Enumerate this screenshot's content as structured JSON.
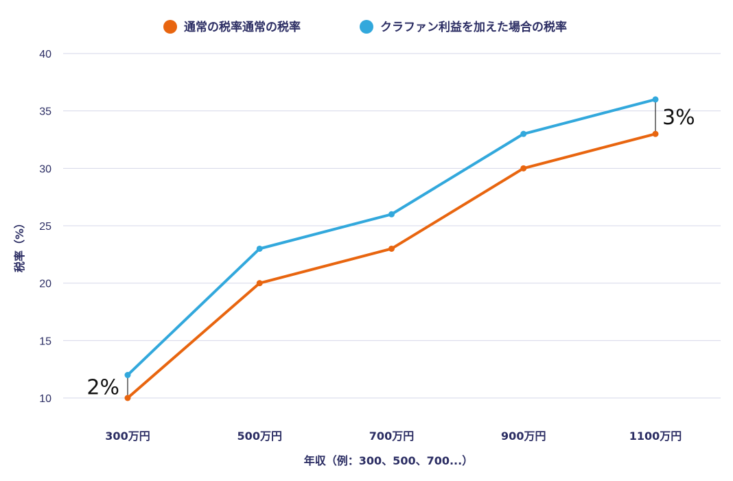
{
  "chart_data": {
    "type": "line",
    "categories": [
      "300万円",
      "500万円",
      "700万円",
      "900万円",
      "1100万円"
    ],
    "series": [
      {
        "name": "通常の税率通常の税率",
        "color": "#e8650f",
        "values": [
          10,
          20,
          23,
          30,
          33
        ]
      },
      {
        "name": "クラファン利益を加えた場合の税率",
        "color": "#32a8dc",
        "values": [
          12,
          23,
          26,
          33,
          36
        ]
      }
    ],
    "xlabel": "年収（例：300、500、700...）",
    "ylabel": "税率（%）",
    "ylim": [
      10,
      40
    ],
    "yticks": [
      10,
      15,
      20,
      25,
      30,
      35,
      40
    ],
    "grid": true,
    "legend_position": "top-center",
    "annotations": [
      {
        "text": "2%",
        "category": "300万円",
        "side": "left"
      },
      {
        "text": "3%",
        "category": "1100万円",
        "side": "right"
      }
    ]
  }
}
